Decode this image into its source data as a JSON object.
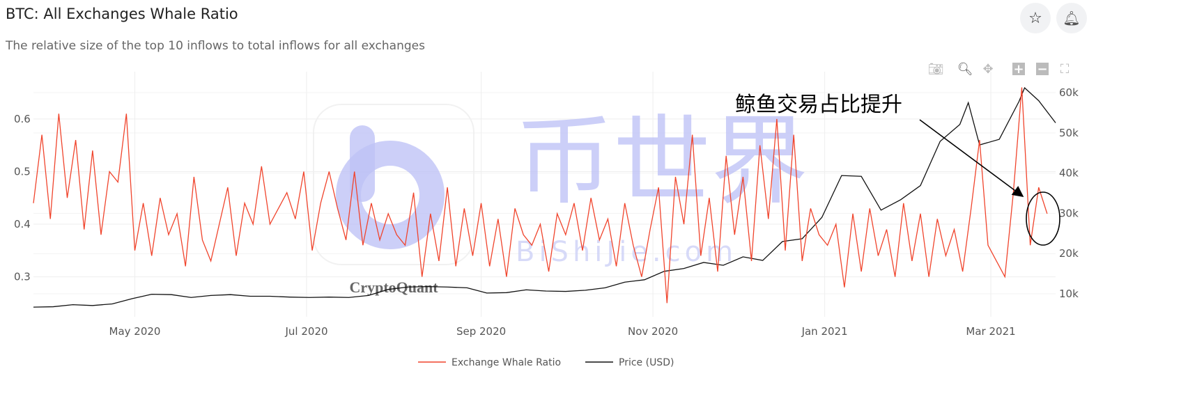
{
  "header": {
    "title": "BTC: All Exchanges Whale Ratio",
    "subtitle": "The relative size of the top 10 inflows to total inflows for all exchanges",
    "star_icon": "star-icon",
    "bell_icon": "bell-icon"
  },
  "toolbar": [
    "camera-icon",
    "zoom-icon",
    "pan-icon",
    "zoom-in-icon",
    "zoom-out-icon",
    "autoscale-icon"
  ],
  "watermark": {
    "logo": "CryptoQuant",
    "brand": "币世界",
    "brand_url": "BiShiJie.com"
  },
  "annotation": {
    "text": "鲸鱼交易占比提升"
  },
  "chart_data": {
    "type": "line",
    "colors": {
      "ratio": "#f0442c",
      "price": "#111111"
    },
    "x_ticks": [
      "May 2020",
      "Jul 2020",
      "Sep 2020",
      "Nov 2020",
      "Jan 2021",
      "Mar 2021"
    ],
    "x_tick_dates": [
      "2020-05-01",
      "2020-07-01",
      "2020-09-01",
      "2020-11-01",
      "2021-01-01",
      "2021-03-01"
    ],
    "xlim": [
      "2020-03-26",
      "2021-03-24"
    ],
    "y_left": {
      "ticks": [
        0.3,
        0.4,
        0.5,
        0.6
      ],
      "range": [
        0.224,
        0.67
      ]
    },
    "y_right": {
      "ticks": [
        10000,
        20000,
        30000,
        40000,
        50000,
        60000
      ],
      "tick_labels": [
        "10k",
        "20k",
        "30k",
        "40k",
        "50k",
        "60k"
      ],
      "range": [
        4300,
        62600
      ]
    },
    "grid": true,
    "legend": "bottom",
    "series": [
      {
        "name": "Exchange Whale Ratio",
        "axis": "left",
        "points": [
          [
            "2020-03-26",
            0.44
          ],
          [
            "2020-03-29",
            0.57
          ],
          [
            "2020-04-01",
            0.41
          ],
          [
            "2020-04-04",
            0.61
          ],
          [
            "2020-04-07",
            0.45
          ],
          [
            "2020-04-10",
            0.56
          ],
          [
            "2020-04-13",
            0.39
          ],
          [
            "2020-04-16",
            0.54
          ],
          [
            "2020-04-19",
            0.38
          ],
          [
            "2020-04-22",
            0.5
          ],
          [
            "2020-04-25",
            0.48
          ],
          [
            "2020-04-28",
            0.61
          ],
          [
            "2020-05-01",
            0.35
          ],
          [
            "2020-05-04",
            0.44
          ],
          [
            "2020-05-07",
            0.34
          ],
          [
            "2020-05-10",
            0.45
          ],
          [
            "2020-05-13",
            0.38
          ],
          [
            "2020-05-16",
            0.42
          ],
          [
            "2020-05-19",
            0.32
          ],
          [
            "2020-05-22",
            0.49
          ],
          [
            "2020-05-25",
            0.37
          ],
          [
            "2020-05-28",
            0.33
          ],
          [
            "2020-05-31",
            0.4
          ],
          [
            "2020-06-03",
            0.47
          ],
          [
            "2020-06-06",
            0.34
          ],
          [
            "2020-06-09",
            0.44
          ],
          [
            "2020-06-12",
            0.4
          ],
          [
            "2020-06-15",
            0.51
          ],
          [
            "2020-06-18",
            0.4
          ],
          [
            "2020-06-21",
            0.43
          ],
          [
            "2020-06-24",
            0.46
          ],
          [
            "2020-06-27",
            0.41
          ],
          [
            "2020-06-30",
            0.5
          ],
          [
            "2020-07-03",
            0.35
          ],
          [
            "2020-07-06",
            0.44
          ],
          [
            "2020-07-09",
            0.5
          ],
          [
            "2020-07-12",
            0.43
          ],
          [
            "2020-07-15",
            0.37
          ],
          [
            "2020-07-18",
            0.5
          ],
          [
            "2020-07-21",
            0.36
          ],
          [
            "2020-07-24",
            0.44
          ],
          [
            "2020-07-27",
            0.37
          ],
          [
            "2020-07-30",
            0.42
          ],
          [
            "2020-08-02",
            0.38
          ],
          [
            "2020-08-05",
            0.36
          ],
          [
            "2020-08-08",
            0.46
          ],
          [
            "2020-08-11",
            0.3
          ],
          [
            "2020-08-14",
            0.42
          ],
          [
            "2020-08-17",
            0.33
          ],
          [
            "2020-08-20",
            0.47
          ],
          [
            "2020-08-23",
            0.32
          ],
          [
            "2020-08-26",
            0.43
          ],
          [
            "2020-08-29",
            0.34
          ],
          [
            "2020-09-01",
            0.44
          ],
          [
            "2020-09-04",
            0.32
          ],
          [
            "2020-09-07",
            0.41
          ],
          [
            "2020-09-10",
            0.3
          ],
          [
            "2020-09-13",
            0.43
          ],
          [
            "2020-09-16",
            0.38
          ],
          [
            "2020-09-19",
            0.36
          ],
          [
            "2020-09-22",
            0.4
          ],
          [
            "2020-09-25",
            0.31
          ],
          [
            "2020-09-28",
            0.42
          ],
          [
            "2020-10-01",
            0.38
          ],
          [
            "2020-10-04",
            0.44
          ],
          [
            "2020-10-07",
            0.35
          ],
          [
            "2020-10-10",
            0.45
          ],
          [
            "2020-10-13",
            0.37
          ],
          [
            "2020-10-16",
            0.41
          ],
          [
            "2020-10-19",
            0.32
          ],
          [
            "2020-10-22",
            0.44
          ],
          [
            "2020-10-25",
            0.36
          ],
          [
            "2020-10-28",
            0.3
          ],
          [
            "2020-10-31",
            0.39
          ],
          [
            "2020-11-03",
            0.47
          ],
          [
            "2020-11-06",
            0.25
          ],
          [
            "2020-11-09",
            0.49
          ],
          [
            "2020-11-12",
            0.4
          ],
          [
            "2020-11-15",
            0.57
          ],
          [
            "2020-11-18",
            0.34
          ],
          [
            "2020-11-21",
            0.45
          ],
          [
            "2020-11-24",
            0.31
          ],
          [
            "2020-11-27",
            0.53
          ],
          [
            "2020-11-30",
            0.38
          ],
          [
            "2020-12-03",
            0.49
          ],
          [
            "2020-12-06",
            0.33
          ],
          [
            "2020-12-09",
            0.55
          ],
          [
            "2020-12-12",
            0.41
          ],
          [
            "2020-12-15",
            0.6
          ],
          [
            "2020-12-18",
            0.35
          ],
          [
            "2020-12-21",
            0.57
          ],
          [
            "2020-12-24",
            0.33
          ],
          [
            "2020-12-27",
            0.43
          ],
          [
            "2020-12-30",
            0.38
          ],
          [
            "2021-01-02",
            0.36
          ],
          [
            "2021-01-05",
            0.4
          ],
          [
            "2021-01-08",
            0.28
          ],
          [
            "2021-01-11",
            0.42
          ],
          [
            "2021-01-14",
            0.31
          ],
          [
            "2021-01-17",
            0.43
          ],
          [
            "2021-01-20",
            0.34
          ],
          [
            "2021-01-23",
            0.39
          ],
          [
            "2021-01-26",
            0.3
          ],
          [
            "2021-01-29",
            0.44
          ],
          [
            "2021-02-01",
            0.33
          ],
          [
            "2021-02-04",
            0.42
          ],
          [
            "2021-02-07",
            0.3
          ],
          [
            "2021-02-10",
            0.41
          ],
          [
            "2021-02-13",
            0.34
          ],
          [
            "2021-02-16",
            0.39
          ],
          [
            "2021-02-19",
            0.31
          ],
          [
            "2021-02-22",
            0.43
          ],
          [
            "2021-02-25",
            0.56
          ],
          [
            "2021-02-28",
            0.36
          ],
          [
            "2021-03-03",
            0.33
          ],
          [
            "2021-03-06",
            0.3
          ],
          [
            "2021-03-09",
            0.46
          ],
          [
            "2021-03-12",
            0.66
          ],
          [
            "2021-03-15",
            0.36
          ],
          [
            "2021-03-18",
            0.47
          ],
          [
            "2021-03-21",
            0.42
          ]
        ]
      },
      {
        "name": "Price (USD)",
        "axis": "right",
        "points": [
          [
            "2020-03-26",
            6700
          ],
          [
            "2020-04-02",
            6800
          ],
          [
            "2020-04-09",
            7300
          ],
          [
            "2020-04-16",
            7100
          ],
          [
            "2020-04-23",
            7500
          ],
          [
            "2020-04-30",
            8800
          ],
          [
            "2020-05-07",
            9900
          ],
          [
            "2020-05-14",
            9800
          ],
          [
            "2020-05-21",
            9100
          ],
          [
            "2020-05-28",
            9600
          ],
          [
            "2020-06-04",
            9800
          ],
          [
            "2020-06-11",
            9400
          ],
          [
            "2020-06-18",
            9400
          ],
          [
            "2020-06-25",
            9200
          ],
          [
            "2020-07-02",
            9100
          ],
          [
            "2020-07-09",
            9200
          ],
          [
            "2020-07-16",
            9100
          ],
          [
            "2020-07-23",
            9600
          ],
          [
            "2020-07-30",
            11100
          ],
          [
            "2020-08-06",
            11700
          ],
          [
            "2020-08-13",
            11800
          ],
          [
            "2020-08-20",
            11700
          ],
          [
            "2020-08-27",
            11500
          ],
          [
            "2020-09-03",
            10200
          ],
          [
            "2020-09-10",
            10300
          ],
          [
            "2020-09-17",
            11000
          ],
          [
            "2020-09-24",
            10700
          ],
          [
            "2020-10-01",
            10600
          ],
          [
            "2020-10-08",
            10900
          ],
          [
            "2020-10-15",
            11500
          ],
          [
            "2020-10-22",
            12900
          ],
          [
            "2020-10-29",
            13500
          ],
          [
            "2020-11-05",
            15600
          ],
          [
            "2020-11-12",
            16300
          ],
          [
            "2020-11-19",
            17800
          ],
          [
            "2020-11-26",
            17100
          ],
          [
            "2020-12-03",
            19200
          ],
          [
            "2020-12-10",
            18300
          ],
          [
            "2020-12-17",
            23000
          ],
          [
            "2020-12-24",
            23700
          ],
          [
            "2020-12-31",
            29000
          ],
          [
            "2021-01-07",
            39400
          ],
          [
            "2021-01-14",
            39200
          ],
          [
            "2021-01-21",
            30800
          ],
          [
            "2021-01-28",
            33400
          ],
          [
            "2021-02-04",
            36900
          ],
          [
            "2021-02-11",
            47900
          ],
          [
            "2021-02-18",
            52100
          ],
          [
            "2021-02-21",
            57500
          ],
          [
            "2021-02-25",
            47000
          ],
          [
            "2021-03-04",
            48400
          ],
          [
            "2021-03-11",
            57800
          ],
          [
            "2021-03-13",
            61200
          ],
          [
            "2021-03-18",
            58000
          ],
          [
            "2021-03-24",
            52500
          ]
        ]
      }
    ]
  }
}
